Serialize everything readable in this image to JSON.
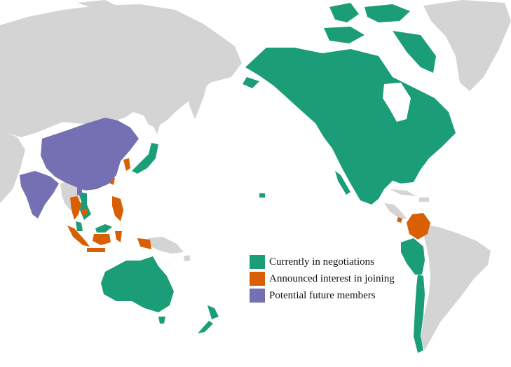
{
  "colors": {
    "background": "#ffffff",
    "land_other": "#d4d4d4",
    "current": "#1b9e77",
    "announced": "#d95f02",
    "potential": "#7570b3"
  },
  "legend": {
    "items": [
      {
        "key": "current",
        "label": "Currently in negotiations",
        "color": "#1b9e77"
      },
      {
        "key": "announced",
        "label": "Announced interest in joining",
        "color": "#d95f02"
      },
      {
        "key": "potential",
        "label": "Potential future members",
        "color": "#7570b3"
      }
    ]
  }
}
